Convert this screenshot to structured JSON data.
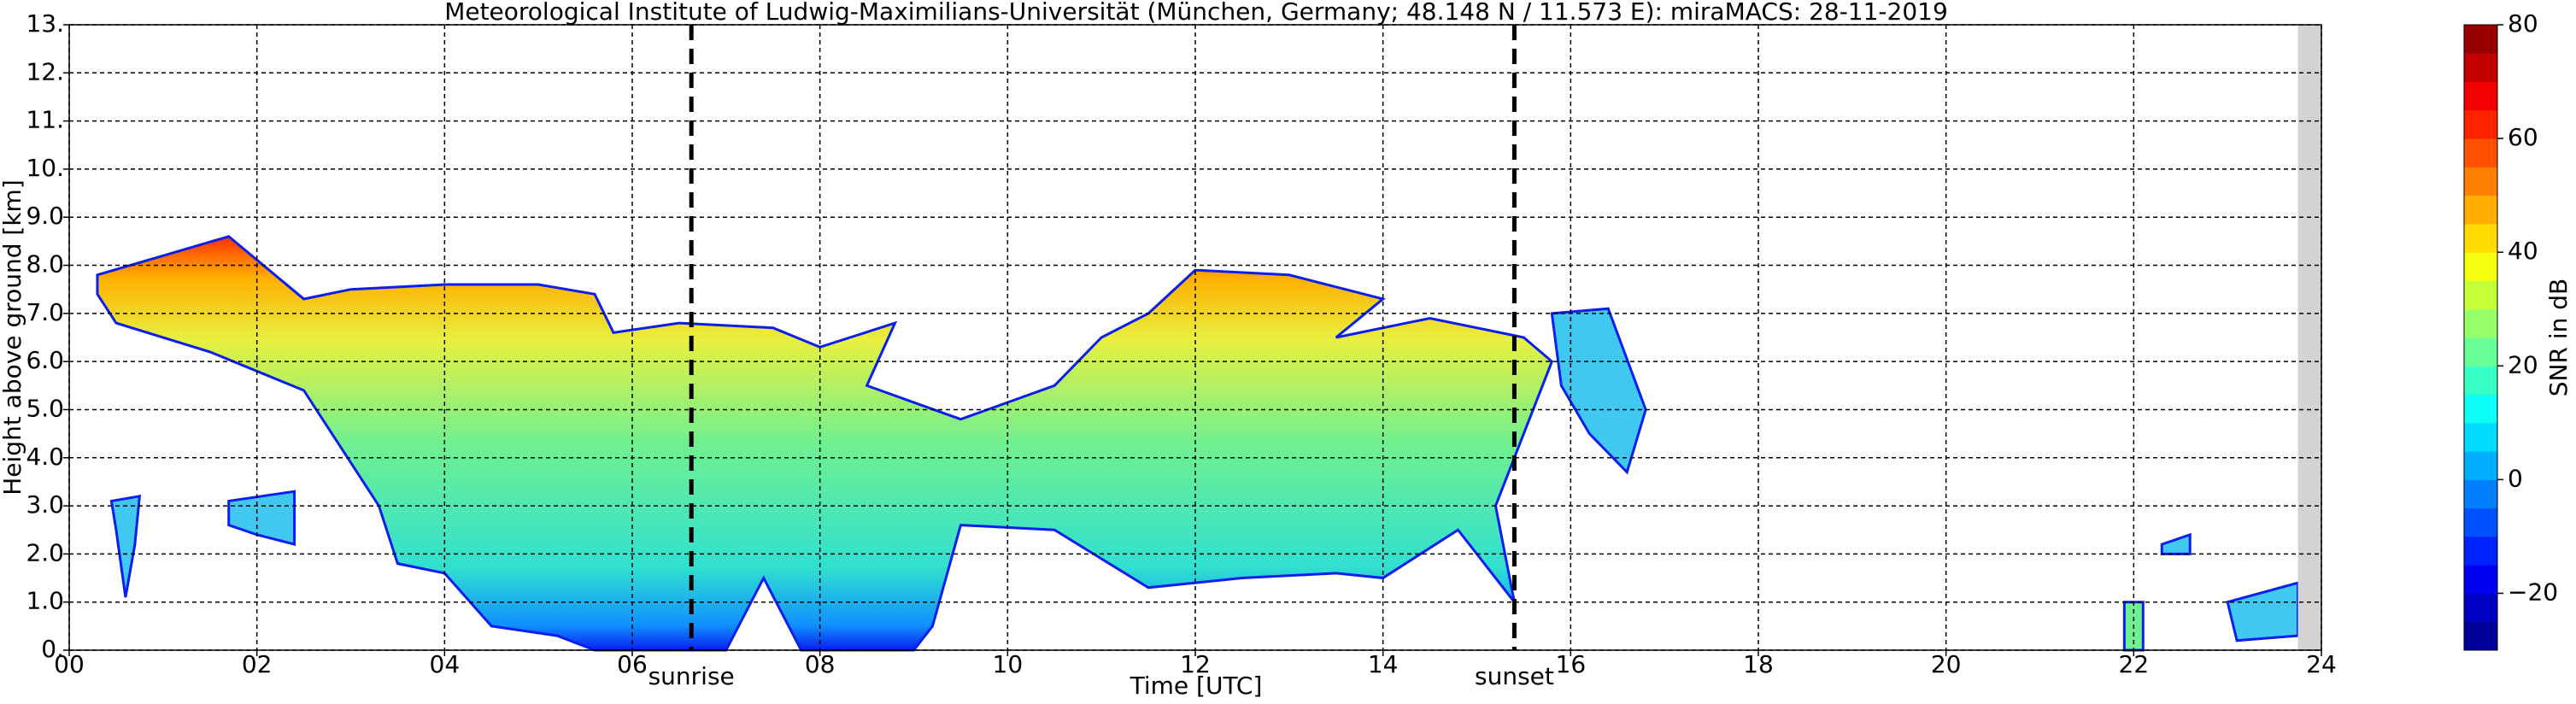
{
  "chart_data": {
    "type": "heatmap",
    "title": "Meteorological Institute of Ludwig-Maximilians-Universität (München, Germany; 48.148 N / 11.573 E):    miraMACS: 28-11-2019",
    "xlabel": "Time [UTC]",
    "ylabel": "Height above ground [km]",
    "xlim": [
      0,
      24
    ],
    "xticks": [
      {
        "value": 0,
        "label": "00"
      },
      {
        "value": 2,
        "label": "02"
      },
      {
        "value": 4,
        "label": "04"
      },
      {
        "value": 6,
        "label": "06"
      },
      {
        "value": 8,
        "label": "08"
      },
      {
        "value": 10,
        "label": "10"
      },
      {
        "value": 12,
        "label": "12"
      },
      {
        "value": 14,
        "label": "14"
      },
      {
        "value": 16,
        "label": "16"
      },
      {
        "value": 18,
        "label": "18"
      },
      {
        "value": 20,
        "label": "20"
      },
      {
        "value": 22,
        "label": "22"
      },
      {
        "value": 24,
        "label": "24"
      }
    ],
    "ylim": [
      0,
      13
    ],
    "yticks": [
      {
        "value": 0,
        "label": "0."
      },
      {
        "value": 1,
        "label": "1.0"
      },
      {
        "value": 2,
        "label": "2.0"
      },
      {
        "value": 3,
        "label": "3.0"
      },
      {
        "value": 4,
        "label": "4.0"
      },
      {
        "value": 5,
        "label": "5.0"
      },
      {
        "value": 6,
        "label": "6.0"
      },
      {
        "value": 7,
        "label": "7.0"
      },
      {
        "value": 8,
        "label": "8.0"
      },
      {
        "value": 9,
        "label": "9.0"
      },
      {
        "value": 10,
        "label": "10."
      },
      {
        "value": 11,
        "label": "11."
      },
      {
        "value": 12,
        "label": "12."
      },
      {
        "value": 13,
        "label": "13."
      }
    ],
    "grid": true,
    "annotations": [
      {
        "x": 6.63,
        "label": "sunrise"
      },
      {
        "x": 15.4,
        "label": "sunset"
      }
    ],
    "colorbar": {
      "label": "SNR in dB",
      "colormap": "jet",
      "lim": [
        -30,
        80
      ],
      "ticks": [
        {
          "value": -20,
          "label": "−20"
        },
        0,
        20,
        40,
        60,
        80
      ]
    }
  }
}
